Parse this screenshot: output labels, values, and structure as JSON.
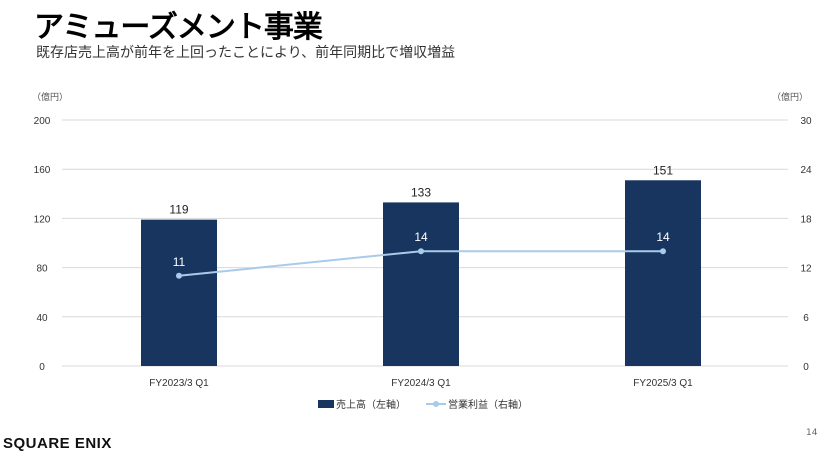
{
  "page": {
    "title": "アミューズメント事業",
    "subtitle": "既存店売上高が前年を上回ったことにより、前年同期比で増収増益",
    "logo": "SQUARE ENIX",
    "page_number": "14"
  },
  "colors": {
    "bar": "#17355e",
    "line": "#a9cbeb",
    "grid": "#d9d9d9"
  },
  "chart_data": {
    "type": "bar+line",
    "categories": [
      "FY2023/3 Q1",
      "FY2024/3 Q1",
      "FY2025/3 Q1"
    ],
    "series": [
      {
        "name": "売上高（左軸）",
        "type": "bar",
        "axis": "left",
        "values": [
          119,
          133,
          151
        ]
      },
      {
        "name": "営業利益（右軸）",
        "type": "line",
        "axis": "right",
        "values": [
          11,
          14,
          14
        ]
      }
    ],
    "left_axis": {
      "unit": "（億円）",
      "range": [
        0,
        200
      ],
      "ticks": [
        "0",
        "40",
        "80",
        "120",
        "160",
        "200"
      ]
    },
    "right_axis": {
      "unit": "（億円）",
      "range": [
        0,
        30
      ],
      "ticks": [
        "0",
        "6",
        "12",
        "18",
        "24",
        "30"
      ]
    },
    "legend_position": "bottom",
    "grid": true
  }
}
